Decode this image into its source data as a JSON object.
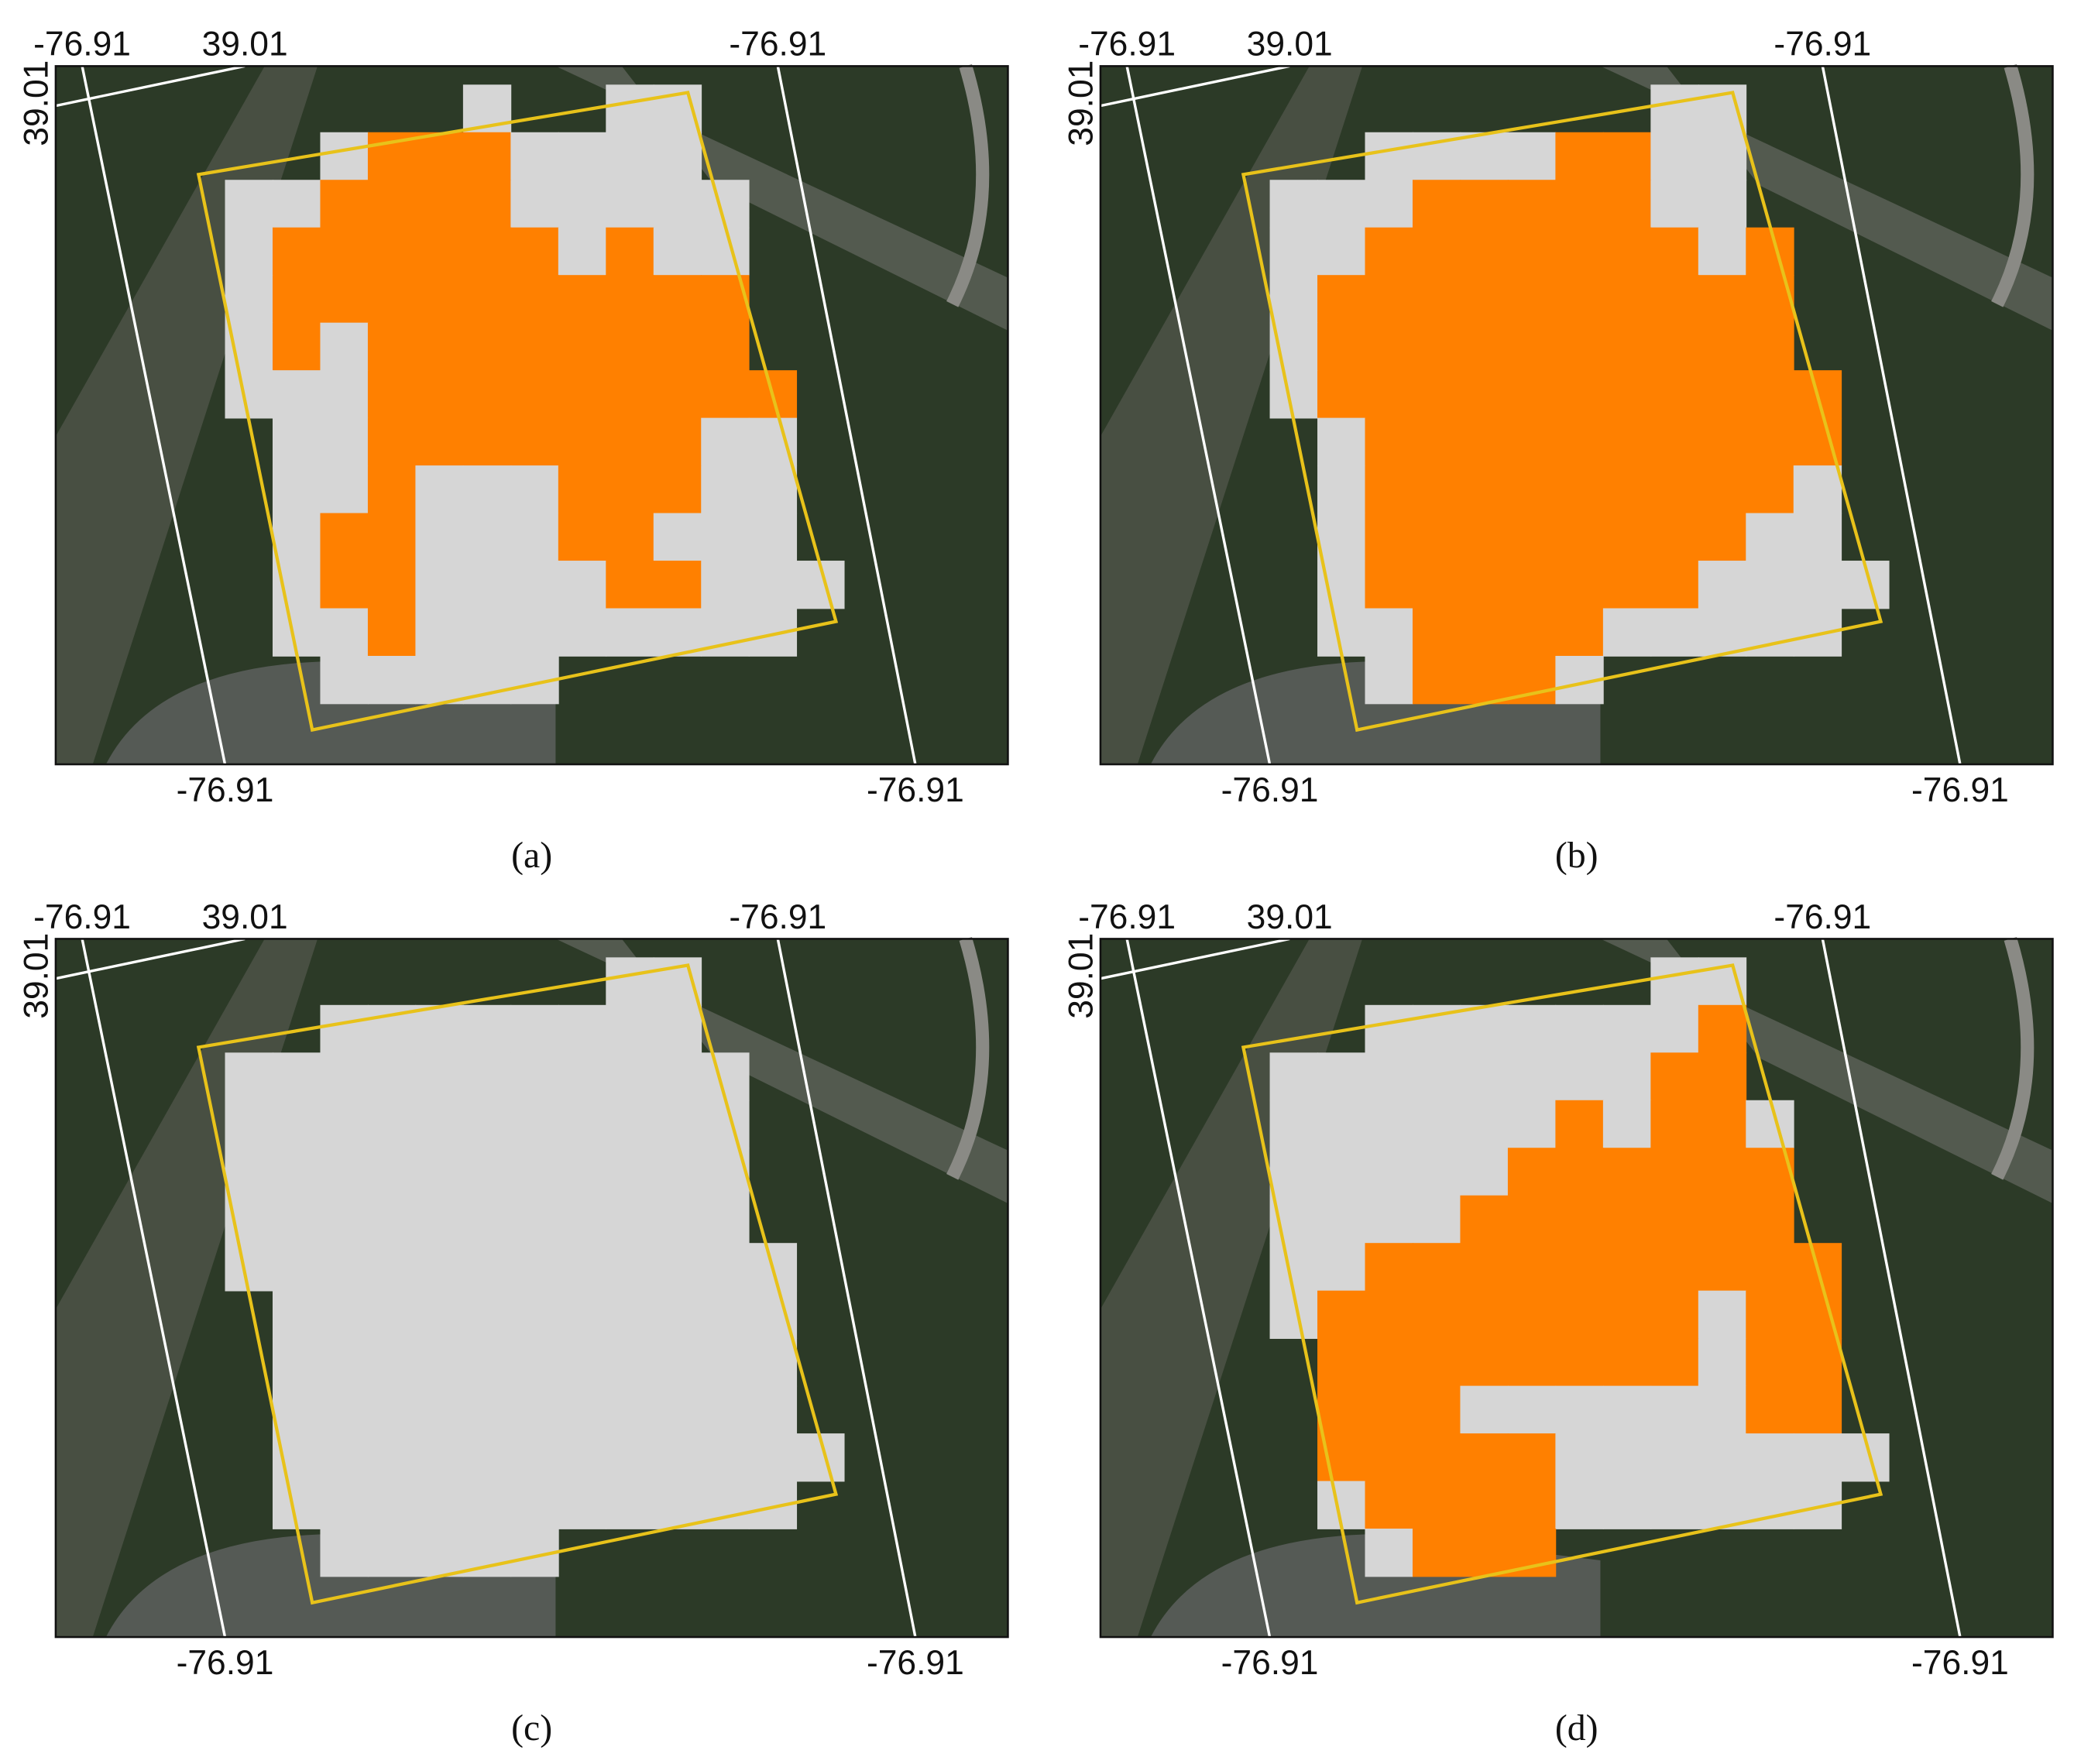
{
  "panels": [
    {
      "caption": "(a)",
      "lon_top_left": "-76.91",
      "lat_top": "39.01",
      "lon_top_right": "-76.91",
      "lat_left": "39.01",
      "lon_bottom_left": "-76.91",
      "lon_bottom_right": "-76.91"
    },
    {
      "caption": "(b)",
      "lon_top_left": "-76.91",
      "lat_top": "39.01",
      "lon_top_right": "-76.91",
      "lat_left": "39.01",
      "lon_bottom_left": "-76.91",
      "lon_bottom_right": "-76.91"
    },
    {
      "caption": "(c)",
      "lon_top_left": "-76.91",
      "lat_top": "39.01",
      "lon_top_right": "-76.91",
      "lat_left": "39.01",
      "lon_bottom_left": "-76.91",
      "lon_bottom_right": "-76.91"
    },
    {
      "caption": "(d)",
      "lon_top_left": "-76.91",
      "lat_top": "39.01",
      "lon_top_right": "-76.91",
      "lat_left": "39.01",
      "lon_bottom_left": "-76.91",
      "lon_bottom_right": "-76.91"
    }
  ]
}
